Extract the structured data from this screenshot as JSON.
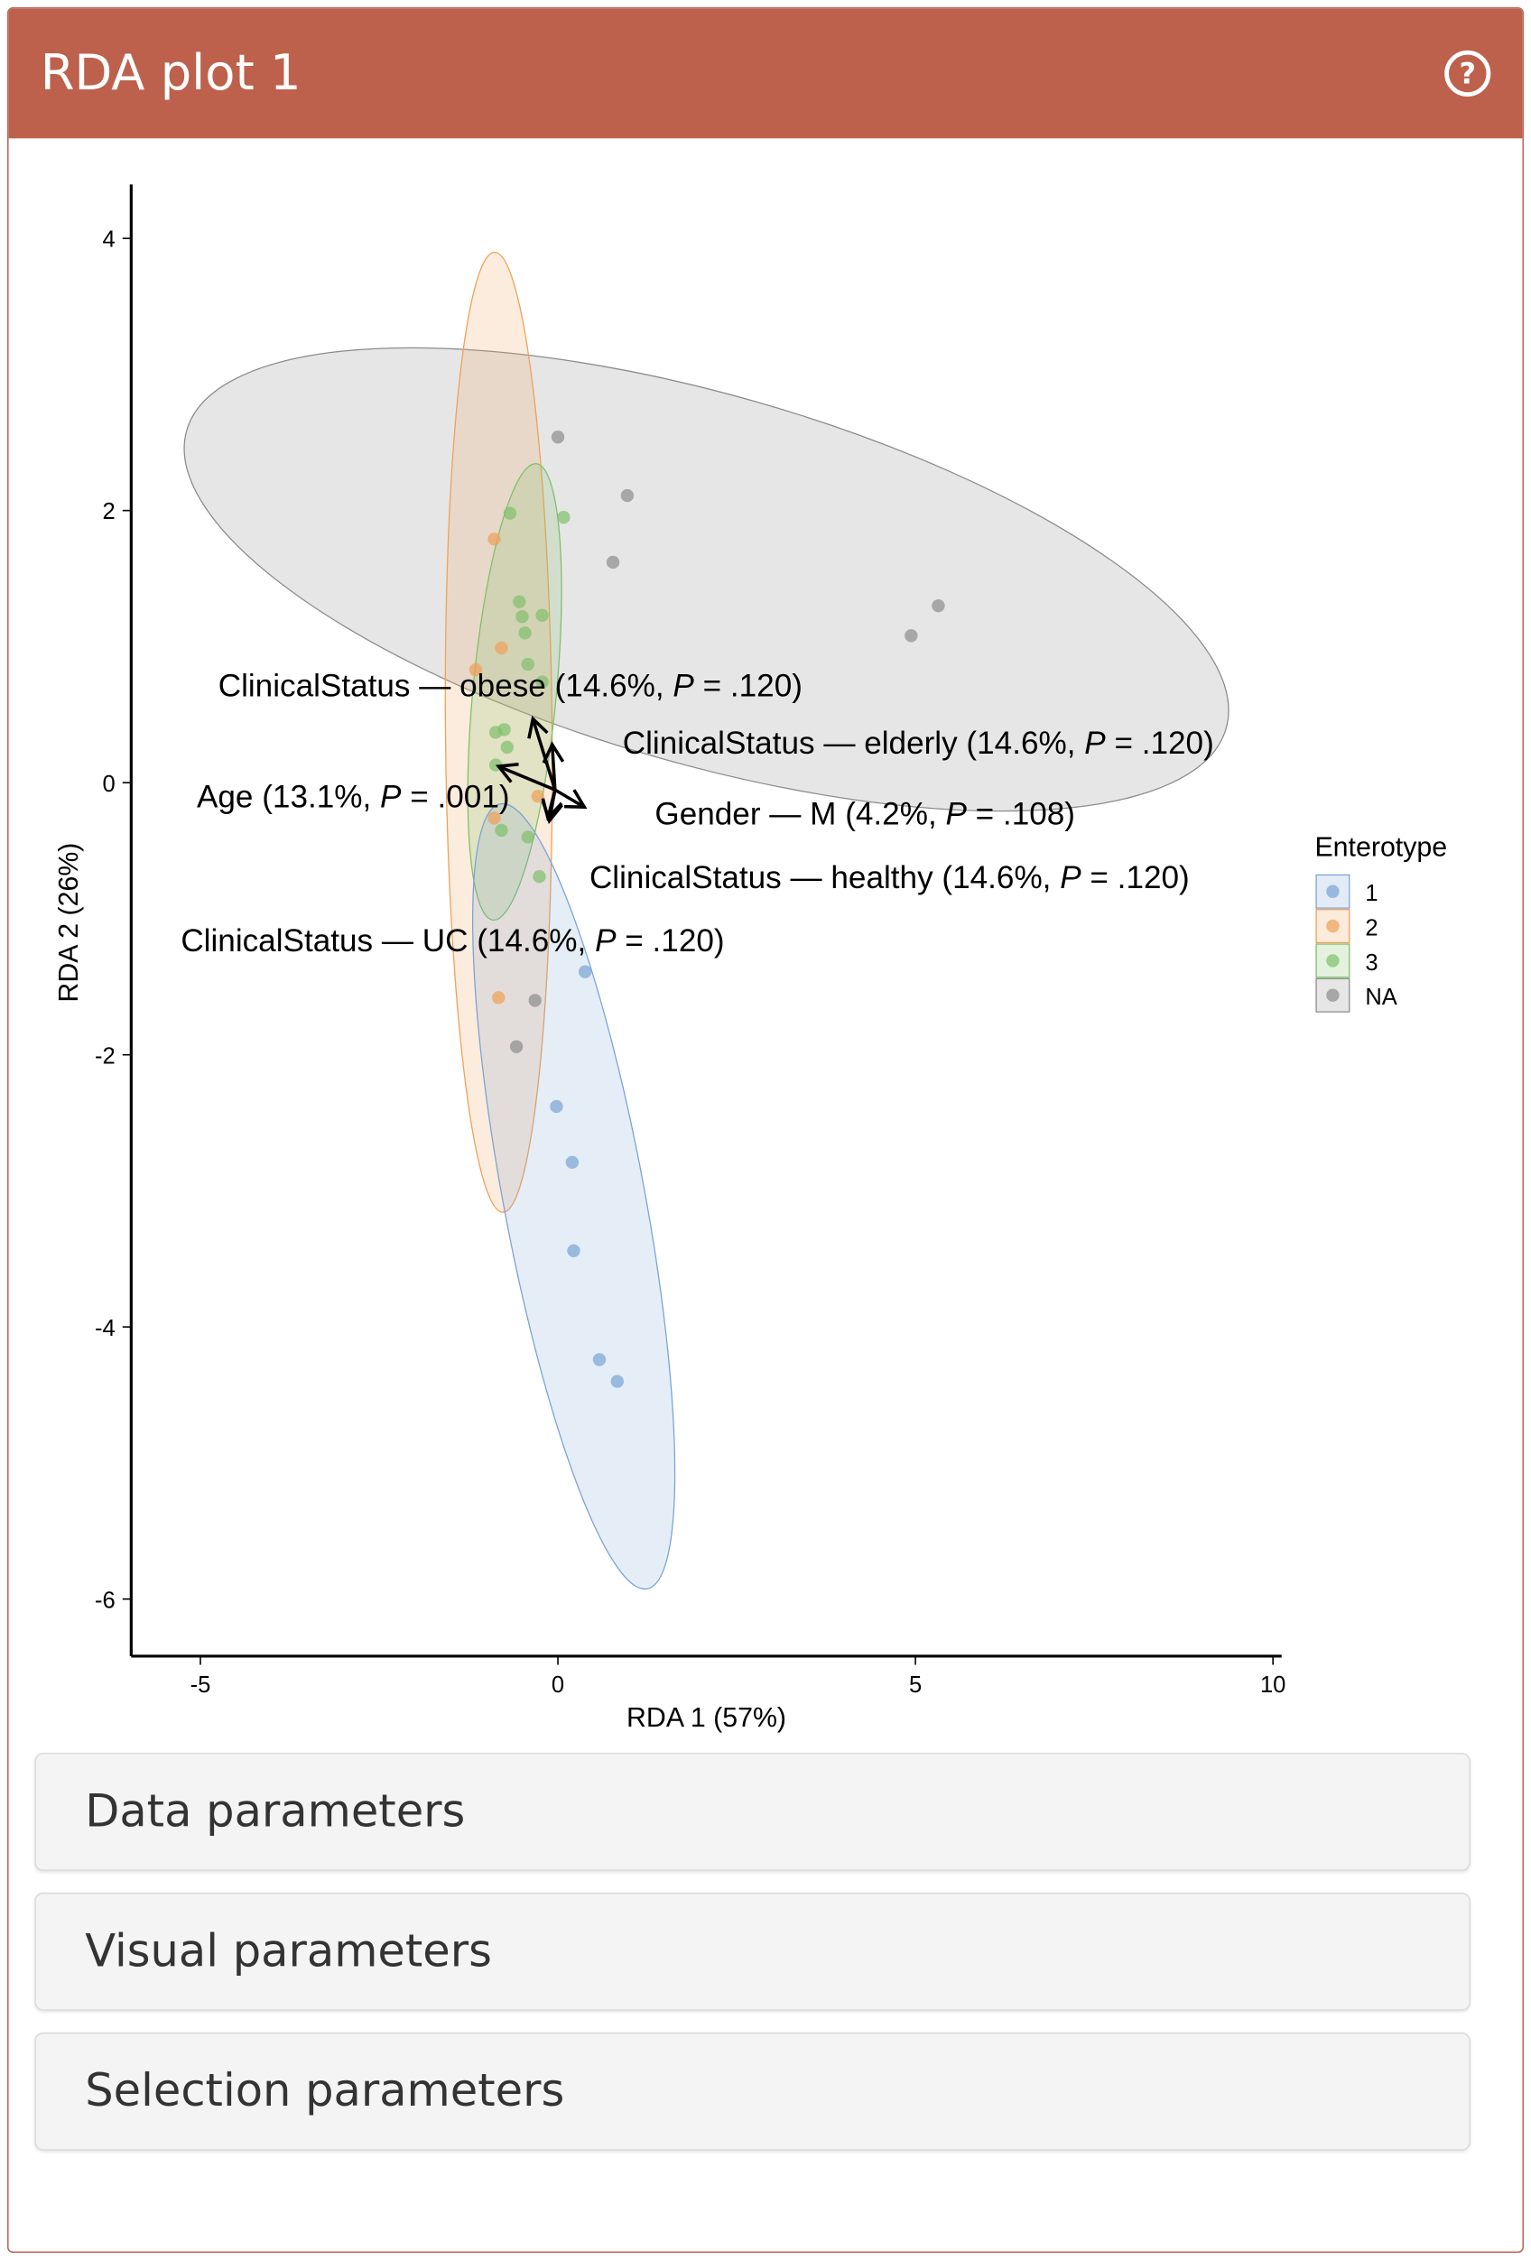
{
  "header": {
    "title": "RDA plot 1",
    "help_icon": "question-circle-icon"
  },
  "colors": {
    "header": "#bd614c",
    "1": "#7ba3d4",
    "2": "#f0a057",
    "3": "#7fbf6a",
    "NA": "#8c8c8c"
  },
  "chart_data": {
    "type": "scatter",
    "xlabel": "RDA 1 (57%)",
    "ylabel": "RDA 2 (26%)",
    "xlim": [
      -6,
      10.1
    ],
    "ylim": [
      -6.4,
      4.4
    ],
    "xticks": [
      "-5",
      "0",
      "5",
      "10"
    ],
    "yticks": [
      "4",
      "2",
      "0",
      "-2",
      "-4",
      "-6"
    ],
    "legend": {
      "title": "Enterotype",
      "position": "right",
      "entries": [
        "1",
        "2",
        "3",
        "NA"
      ]
    },
    "series": [
      {
        "name": "1",
        "points": [
          [
            0.38,
            -1.39
          ],
          [
            -0.02,
            -2.38
          ],
          [
            0.2,
            -2.79
          ],
          [
            0.22,
            -3.44
          ],
          [
            0.58,
            -4.24
          ],
          [
            0.83,
            -4.4
          ]
        ]
      },
      {
        "name": "2",
        "points": [
          [
            -0.89,
            1.79
          ],
          [
            -0.79,
            0.99
          ],
          [
            -1.15,
            0.83
          ],
          [
            -0.83,
            -1.58
          ],
          [
            -0.28,
            -0.1
          ],
          [
            -0.89,
            -0.26
          ]
        ]
      },
      {
        "name": "3",
        "points": [
          [
            -0.67,
            1.98
          ],
          [
            0.08,
            1.95
          ],
          [
            -0.54,
            1.33
          ],
          [
            -0.5,
            1.22
          ],
          [
            -0.22,
            1.23
          ],
          [
            -0.46,
            1.1
          ],
          [
            -0.42,
            0.87
          ],
          [
            -0.22,
            0.74
          ],
          [
            -0.75,
            0.39
          ],
          [
            -0.87,
            0.37
          ],
          [
            -0.71,
            0.26
          ],
          [
            -0.87,
            0.13
          ],
          [
            -0.79,
            -0.35
          ],
          [
            -0.42,
            -0.4
          ],
          [
            -0.26,
            -0.69
          ]
        ]
      },
      {
        "name": "NA",
        "points": [
          [
            0.0,
            2.54
          ],
          [
            0.97,
            2.11
          ],
          [
            0.77,
            1.62
          ],
          [
            5.32,
            1.3
          ],
          [
            4.94,
            1.08
          ],
          [
            -0.32,
            -1.6
          ],
          [
            -0.58,
            -1.94
          ]
        ]
      }
    ],
    "arrows": [
      {
        "label": "ClinicalStatus — obese (14.6%, ",
        "p": ".120",
        "end": [
          -0.35,
          0.47
        ]
      },
      {
        "label": "ClinicalStatus — elderly (14.6%, ",
        "p": ".120",
        "end": [
          -0.08,
          0.28
        ]
      },
      {
        "label": "Age (13.1%, ",
        "p": ".001",
        "end": [
          -0.83,
          0.12
        ]
      },
      {
        "label": "Gender — M (4.2%, ",
        "p": ".108",
        "end": [
          0.37,
          -0.18
        ]
      },
      {
        "label": "ClinicalStatus — UC (14.6%, ",
        "p": ".120",
        "end": [
          -0.14,
          -0.26
        ]
      },
      {
        "label": "ClinicalStatus — healthy (14.6%, ",
        "p": ".120",
        "end": [
          -0.12,
          -0.28
        ]
      }
    ]
  },
  "accordions": [
    "Data parameters",
    "Visual parameters",
    "Selection parameters"
  ]
}
